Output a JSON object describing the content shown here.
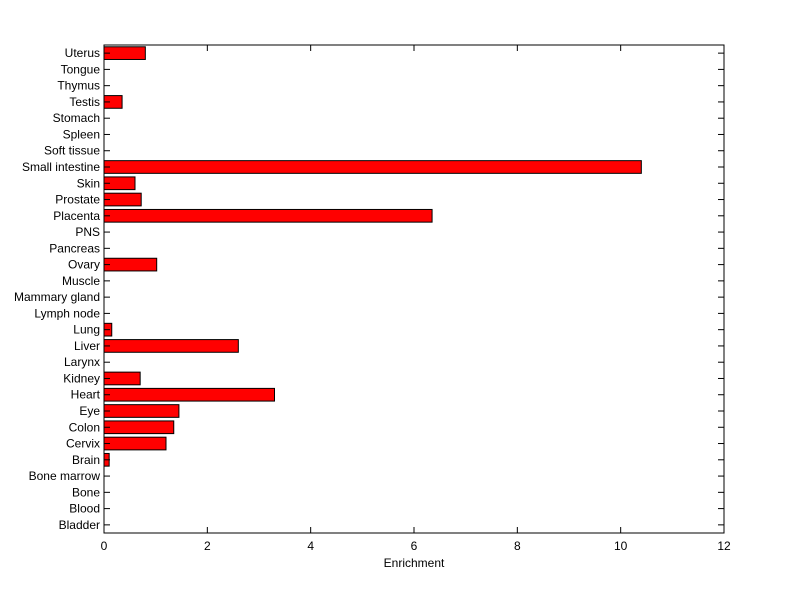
{
  "chart_data": {
    "type": "bar",
    "orientation": "horizontal",
    "title": "",
    "xlabel": "Enrichment",
    "ylabel": "",
    "xlim": [
      0,
      12
    ],
    "xticks": [
      "0",
      "2",
      "4",
      "6",
      "8",
      "10",
      "12"
    ],
    "grid": false,
    "bar_color": "#ff0000",
    "edge_color": "#000000",
    "categories": [
      "Bladder",
      "Blood",
      "Bone",
      "Bone marrow",
      "Brain",
      "Cervix",
      "Colon",
      "Eye",
      "Heart",
      "Kidney",
      "Larynx",
      "Liver",
      "Lung",
      "Lymph node",
      "Mammary gland",
      "Muscle",
      "Ovary",
      "Pancreas",
      "PNS",
      "Placenta",
      "Prostate",
      "Skin",
      "Small intestine",
      "Soft tissue",
      "Spleen",
      "Stomach",
      "Testis",
      "Thymus",
      "Tongue",
      "Uterus"
    ],
    "values": [
      0,
      0,
      0,
      0,
      0.1,
      1.2,
      1.35,
      1.45,
      3.3,
      0.7,
      0,
      2.6,
      0.15,
      0,
      0,
      0,
      1.02,
      0,
      0,
      6.35,
      0.72,
      0.6,
      10.4,
      0,
      0,
      0,
      0.35,
      0,
      0,
      0.8
    ]
  }
}
